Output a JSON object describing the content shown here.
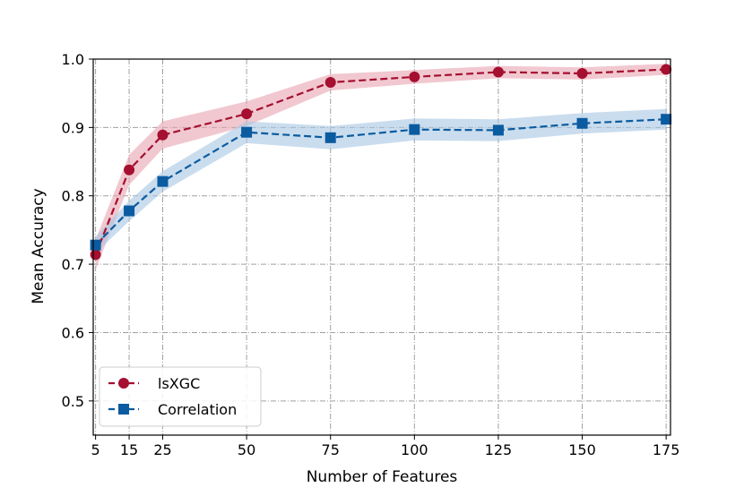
{
  "chart_data": {
    "type": "line",
    "title": "",
    "xlabel": "Number of Features",
    "ylabel": "Mean Accuracy",
    "x": [
      5,
      15,
      25,
      50,
      75,
      100,
      125,
      150,
      175
    ],
    "x_tick_labels": [
      "5",
      "15",
      "25",
      "50",
      "75",
      "100",
      "125",
      "150",
      "175"
    ],
    "y_tick_labels": [
      "0.5",
      "0.6",
      "0.7",
      "0.8",
      "0.9",
      "1.0"
    ],
    "y_ticks": [
      0.5,
      0.6,
      0.7,
      0.8,
      0.9,
      1.0
    ],
    "xlim": [
      4.3,
      176.3
    ],
    "ylim": [
      0.45,
      1.0
    ],
    "grid": true,
    "legend_position": "lower-left",
    "series": [
      {
        "name": "lsXGC",
        "color": "#a50f30",
        "band_color": "#e7a3b0",
        "marker": "circle",
        "values": [
          0.714,
          0.838,
          0.889,
          0.92,
          0.966,
          0.974,
          0.981,
          0.979,
          0.985
        ],
        "band": [
          0.022,
          0.022,
          0.02,
          0.018,
          0.012,
          0.01,
          0.009,
          0.009,
          0.008
        ]
      },
      {
        "name": "Correlation",
        "color": "#0b5ba0",
        "band_color": "#a7c7e2",
        "marker": "square",
        "values": [
          0.728,
          0.778,
          0.821,
          0.893,
          0.885,
          0.897,
          0.896,
          0.906,
          0.912
        ],
        "band": [
          0.012,
          0.015,
          0.015,
          0.016,
          0.017,
          0.016,
          0.016,
          0.015,
          0.015
        ]
      }
    ]
  }
}
